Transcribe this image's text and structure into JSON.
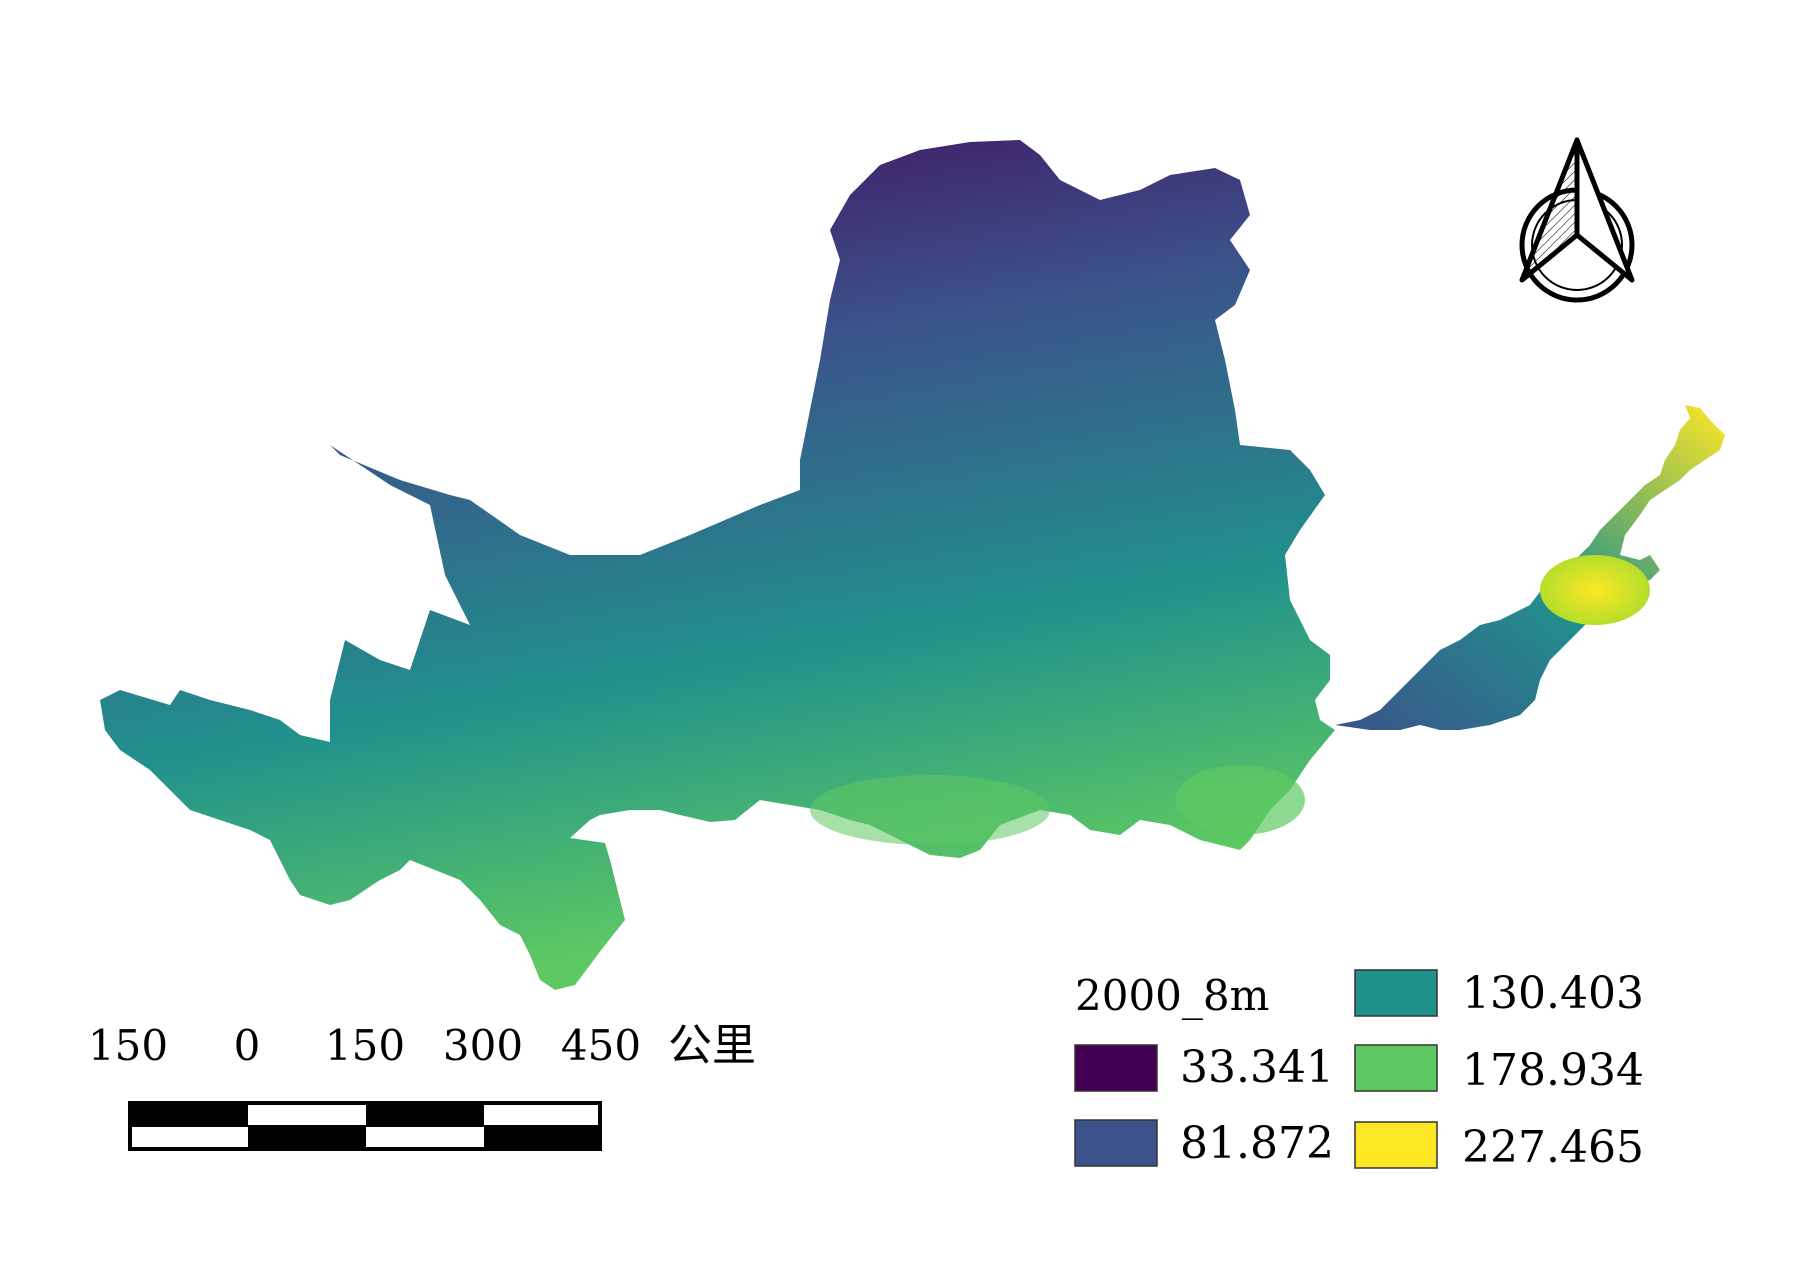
{
  "map": {
    "legend": {
      "title": "2000_8m",
      "items": [
        {
          "label": "33.341",
          "color": "#440154"
        },
        {
          "label": "81.872",
          "color": "#3b528b"
        },
        {
          "label": "130.403",
          "color": "#21918c"
        },
        {
          "label": "178.934",
          "color": "#5ec962"
        },
        {
          "label": "227.465",
          "color": "#fde725"
        }
      ]
    },
    "scale_bar": {
      "labels": [
        "150",
        "0",
        "150",
        "300",
        "450"
      ],
      "unit": "公里"
    },
    "north_arrow_icon": "north-arrow-icon"
  }
}
